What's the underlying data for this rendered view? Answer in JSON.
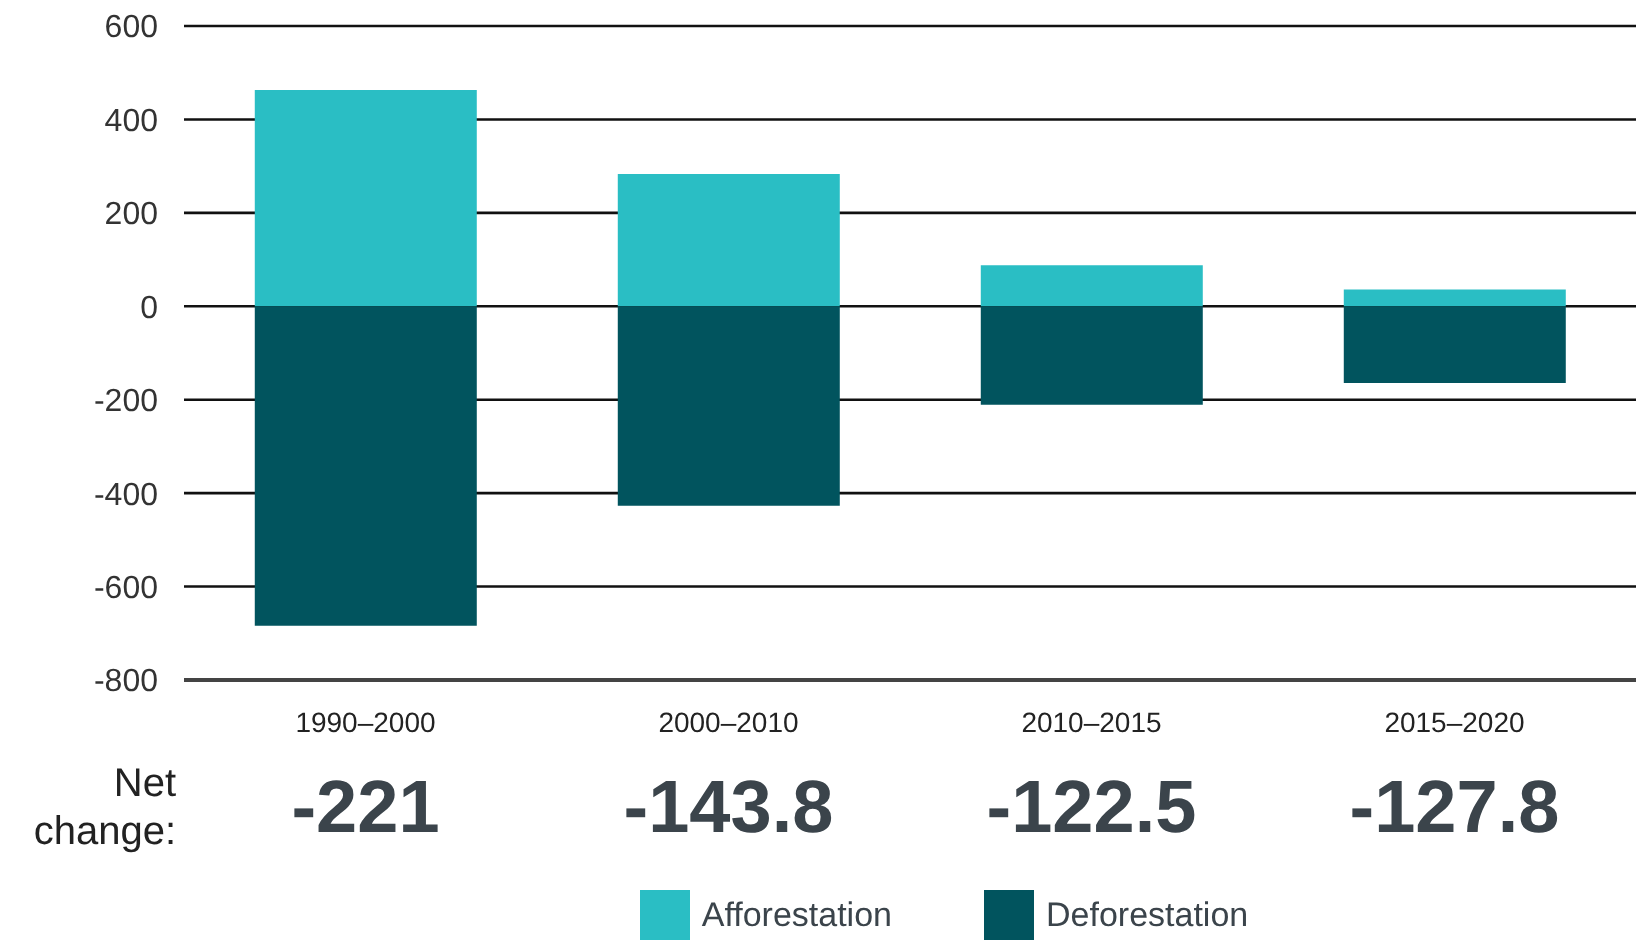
{
  "chart_data": {
    "type": "bar",
    "categories": [
      "1990–2000",
      "2000–2010",
      "2010–2015",
      "2015–2020"
    ],
    "series": [
      {
        "name": "Afforestation",
        "color": "#2abec4",
        "values": [
          463,
          283,
          88,
          36
        ]
      },
      {
        "name": "Deforestation",
        "color": "#01545e",
        "values": [
          -684,
          -427,
          -211,
          -164
        ]
      }
    ],
    "stacked": true,
    "ylim": [
      -800,
      600
    ],
    "yticks": [
      -800,
      -600,
      -400,
      -200,
      0,
      200,
      400,
      600
    ],
    "grid": "y",
    "legend": "bottom",
    "annotations": [
      "Net change:",
      "-221",
      "-143.8",
      "-122.5",
      "-127.8"
    ]
  }
}
